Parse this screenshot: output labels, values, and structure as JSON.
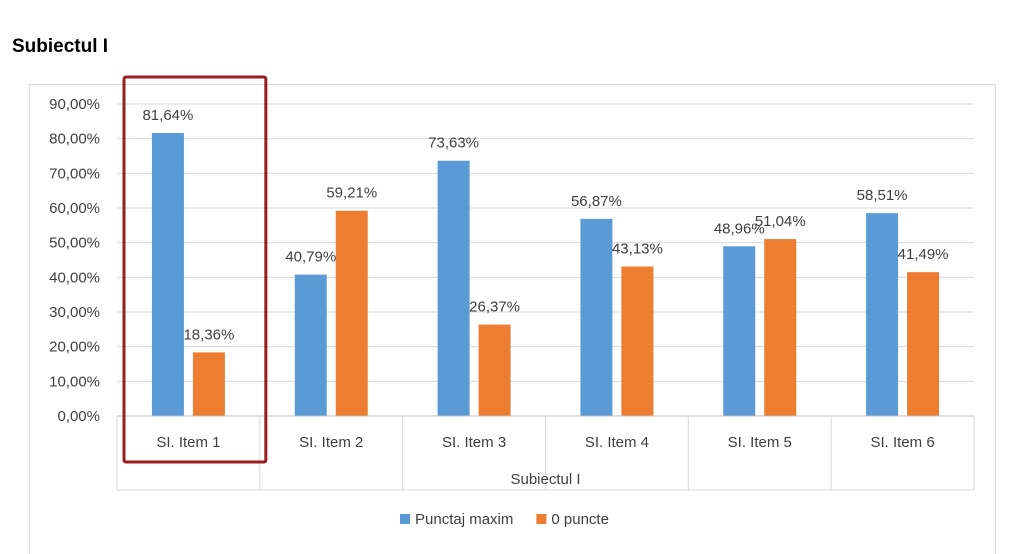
{
  "page": {
    "heading": "Subiectul I"
  },
  "chart_data": {
    "type": "bar",
    "categories": [
      "SI. Item 1",
      "SI. Item 2",
      "SI. Item 3",
      "SI. Item 4",
      "SI. Item 5",
      "SI. Item 6"
    ],
    "series": [
      {
        "name": "Punctaj maxim",
        "color": "#5b9bd5",
        "values": [
          81.64,
          40.79,
          73.63,
          56.87,
          48.96,
          58.51
        ],
        "labels": [
          "81,64%",
          "40,79%",
          "73,63%",
          "56,87%",
          "48,96%",
          "58,51%"
        ]
      },
      {
        "name": "0 puncte",
        "color": "#ed7d31",
        "values": [
          18.36,
          59.21,
          26.37,
          43.13,
          51.04,
          41.49
        ],
        "labels": [
          "18,36%",
          "59,21%",
          "26,37%",
          "43,13%",
          "51,04%",
          "41,49%"
        ]
      }
    ],
    "xlabel": "Subiectul I",
    "ylim": [
      0,
      90
    ],
    "yticks": [
      "0,00%",
      "10,00%",
      "20,00%",
      "30,00%",
      "40,00%",
      "50,00%",
      "60,00%",
      "70,00%",
      "80,00%",
      "90,00%"
    ],
    "grid": true,
    "legend_position": "bottom",
    "highlight": {
      "category": "SI. Item 1",
      "color": "#9b1c1c"
    }
  }
}
